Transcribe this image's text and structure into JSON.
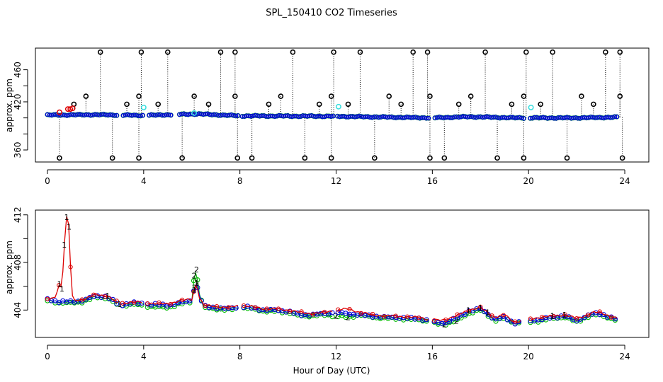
{
  "figure": {
    "title": "SPL_150410  CO2 Timeseries",
    "xlabel": "Hour of Day (UTC)"
  },
  "colors": {
    "series1": "#dd0000",
    "series2": "#00bb00",
    "series3": "#0000dd",
    "outlier": "#000000",
    "highlight": "#33dddd"
  },
  "chart_data": [
    {
      "type": "scatter",
      "title": "",
      "xlabel": "",
      "ylabel": "approx. ppm",
      "xlim": [
        -0.5,
        25
      ],
      "ylim": [
        345,
        487
      ],
      "xticks": [
        0,
        4,
        8,
        12,
        16,
        20,
        24
      ],
      "yticks": [
        360,
        420,
        460
      ],
      "yticks_minor_unlabeled": [
        380,
        400,
        440
      ],
      "baseline": [
        [
          0.0,
          403.5
        ],
        [
          2.0,
          404
        ],
        [
          4.0,
          403
        ],
        [
          6.2,
          405
        ],
        [
          8.0,
          402.5
        ],
        [
          12.0,
          402
        ],
        [
          16.0,
          400
        ],
        [
          17.5,
          401.5
        ],
        [
          19.5,
          400
        ],
        [
          22.0,
          400
        ],
        [
          24.0,
          401
        ]
      ],
      "baseline_gaps": [
        [
          2.9,
          3.1
        ],
        [
          4.0,
          4.15
        ],
        [
          5.2,
          5.4
        ],
        [
          7.95,
          8.05
        ],
        [
          11.9,
          12.05
        ],
        [
          15.9,
          16.05
        ],
        [
          19.8,
          20.05
        ],
        [
          23.75,
          24.1
        ]
      ],
      "spikes_high": [
        2.2,
        3.9,
        5.0,
        7.2,
        7.8,
        10.2,
        11.9,
        13.0,
        15.2,
        15.8,
        18.2,
        19.9,
        21.0,
        23.2,
        23.8
      ],
      "spikes_low": [
        0.5,
        2.7,
        3.8,
        5.6,
        7.9,
        8.5,
        10.7,
        11.8,
        13.6,
        15.9,
        16.5,
        18.7,
        19.8,
        21.6,
        23.9
      ],
      "spikes_mid": [
        1.1,
        1.6,
        3.3,
        3.8,
        4.6,
        6.1,
        6.7,
        7.8,
        9.2,
        9.7,
        11.3,
        11.8,
        12.5,
        14.2,
        14.7,
        15.9,
        17.1,
        17.6,
        19.3,
        19.8,
        20.5,
        22.2,
        22.7,
        23.8
      ],
      "spike_values": {
        "high": 482,
        "low": 350,
        "mid_a": 417,
        "mid_b": 427
      },
      "red_points": [
        [
          0.5,
          407
        ],
        [
          0.85,
          411
        ],
        [
          0.95,
          411
        ],
        [
          1.05,
          412
        ]
      ],
      "cyan_points": [
        [
          4.0,
          413
        ],
        [
          6.1,
          406
        ],
        [
          12.1,
          414
        ],
        [
          20.1,
          413
        ]
      ]
    },
    {
      "type": "line",
      "title": "",
      "xlabel": "",
      "ylabel": "approx. ppm",
      "xlim": [
        -0.5,
        25
      ],
      "ylim": [
        401.7,
        412.4
      ],
      "xticks": [
        0,
        4,
        8,
        12,
        16,
        20,
        24
      ],
      "yticks": [
        404,
        408,
        412
      ],
      "yticks_minor_unlabeled": [
        406,
        410
      ],
      "series": [
        {
          "name": "1",
          "x": [
            0.0,
            0.3,
            0.5,
            0.6,
            0.7,
            0.8,
            0.9,
            1.0,
            1.1,
            1.5,
            2.0,
            2.5,
            3.0,
            3.5,
            4.2,
            5.0,
            5.5,
            6.0,
            6.1,
            6.2,
            6.3,
            6.5,
            7.0,
            7.5,
            8.0,
            8.5,
            9.0,
            9.5,
            10.0,
            10.5,
            11.0,
            11.5,
            12.0,
            12.5,
            13.0,
            13.5,
            14.0,
            14.5,
            15.0,
            15.5,
            16.0,
            16.5,
            17.0,
            17.5,
            18.0,
            18.3,
            18.6,
            19.0,
            19.4,
            19.7,
            20.0,
            20.5,
            21.0,
            21.5,
            22.0,
            22.3,
            22.7,
            23.0,
            23.5,
            23.7
          ],
          "y": [
            404.9,
            405.0,
            406.2,
            405.8,
            409.5,
            411.8,
            411.0,
            405.4,
            404.8,
            404.9,
            405.3,
            405.2,
            404.5,
            404.7,
            404.6,
            404.5,
            404.8,
            404.9,
            405.7,
            406.3,
            405.1,
            404.4,
            404.3,
            404.2,
            404.4,
            404.3,
            404.1,
            404.1,
            404.0,
            403.8,
            403.7,
            403.8,
            404.0,
            404.1,
            403.8,
            403.6,
            403.5,
            403.5,
            403.4,
            403.4,
            403.1,
            403.2,
            403.5,
            404.0,
            404.2,
            403.8,
            403.4,
            403.6,
            403.0,
            403.1,
            403.2,
            403.4,
            403.5,
            403.6,
            403.3,
            403.5,
            403.8,
            403.8,
            403.4,
            403.3
          ]
        },
        {
          "name": "2",
          "x": [
            0.0,
            0.5,
            1.0,
            1.5,
            2.0,
            2.5,
            3.0,
            3.5,
            4.2,
            5.0,
            5.5,
            6.0,
            6.1,
            6.2,
            6.3,
            6.5,
            7.0,
            7.5,
            8.0,
            8.5,
            9.0,
            9.5,
            10.0,
            10.5,
            11.0,
            11.5,
            12.0,
            12.5,
            13.0,
            13.5,
            14.0,
            14.5,
            15.0,
            15.5,
            16.0,
            16.5,
            17.0,
            17.5,
            18.0,
            18.3,
            18.6,
            19.0,
            19.4,
            19.7,
            20.0,
            20.5,
            21.0,
            21.5,
            22.0,
            22.3,
            22.7,
            23.0,
            23.5,
            23.7
          ],
          "y": [
            404.8,
            404.6,
            404.6,
            404.7,
            405.1,
            405.0,
            404.3,
            404.5,
            404.3,
            404.2,
            404.5,
            404.7,
            406.9,
            407.4,
            405.4,
            404.2,
            404.1,
            404.0,
            404.2,
            404.1,
            403.9,
            403.9,
            403.8,
            403.5,
            403.5,
            403.6,
            403.5,
            403.4,
            403.6,
            403.4,
            403.3,
            403.3,
            403.2,
            403.2,
            402.9,
            402.8,
            403.1,
            403.7,
            404.0,
            403.6,
            403.1,
            403.3,
            402.9,
            402.9,
            403.0,
            403.1,
            403.3,
            403.4,
            403.0,
            403.3,
            403.6,
            403.6,
            403.2,
            403.1
          ]
        },
        {
          "name": "3",
          "x": [
            0.0,
            0.5,
            1.0,
            1.5,
            2.0,
            2.5,
            3.0,
            3.5,
            4.2,
            5.0,
            5.5,
            6.0,
            6.1,
            6.2,
            6.3,
            6.5,
            7.0,
            7.5,
            8.0,
            8.5,
            9.0,
            9.5,
            10.0,
            10.5,
            11.0,
            11.5,
            12.0,
            12.5,
            13.0,
            13.5,
            14.0,
            14.5,
            15.0,
            15.5,
            16.0,
            16.5,
            17.0,
            17.5,
            18.0,
            18.3,
            18.6,
            19.0,
            19.4,
            19.7,
            20.0,
            20.5,
            21.0,
            21.5,
            22.0,
            22.3,
            22.7,
            23.0,
            23.5,
            23.7
          ],
          "y": [
            404.9,
            404.7,
            404.7,
            404.8,
            405.2,
            405.1,
            404.4,
            404.6,
            404.5,
            404.4,
            404.6,
            404.8,
            405.9,
            406.2,
            405.3,
            404.3,
            404.2,
            404.1,
            404.3,
            404.2,
            404.0,
            404.0,
            403.9,
            403.6,
            403.6,
            403.7,
            403.8,
            403.7,
            403.6,
            403.5,
            403.4,
            403.4,
            403.3,
            403.3,
            403.0,
            402.9,
            403.3,
            403.9,
            404.1,
            403.7,
            403.2,
            403.4,
            402.9,
            403.0,
            403.1,
            403.2,
            403.4,
            403.5,
            403.1,
            403.4,
            403.7,
            403.7,
            403.3,
            403.2
          ]
        }
      ],
      "gaps": [
        [
          2.95,
          3.05
        ],
        [
          4.0,
          4.15
        ],
        [
          7.95,
          8.1
        ],
        [
          11.9,
          12.05
        ],
        [
          15.9,
          16.05
        ],
        [
          19.75,
          20.05
        ],
        [
          23.75,
          24.1
        ]
      ]
    }
  ]
}
